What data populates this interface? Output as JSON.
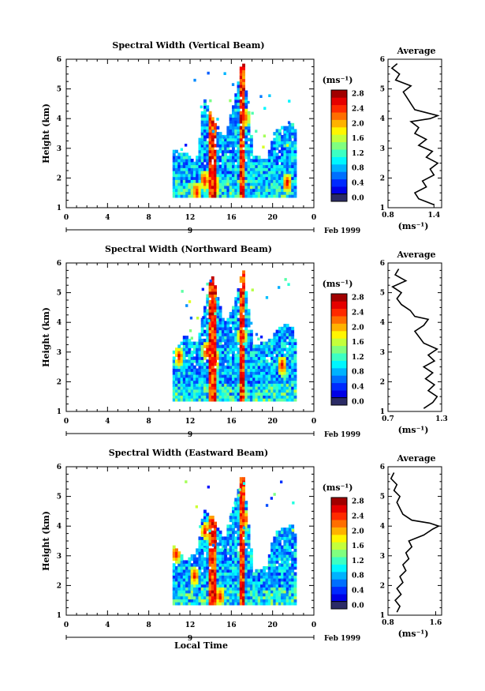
{
  "footer": {
    "xlabel": "Local Time"
  },
  "chart_data": [
    {
      "type": "heatmap",
      "title": "Spectral Width (Vertical Beam)",
      "ylabel": "Height (km)",
      "x_ticks": [
        "0",
        "4",
        "8",
        "12",
        "16",
        "20",
        "0"
      ],
      "y_ticks": [
        "1",
        "2",
        "3",
        "4",
        "5",
        "6"
      ],
      "xlim": [
        0,
        24
      ],
      "ylim": [
        1,
        6
      ],
      "day_label": "9",
      "date_label": "Feb 1999",
      "colorbar": {
        "unit": "(ms⁻¹)",
        "labels": [
          "0.0",
          "0.4",
          "0.8",
          "1.2",
          "1.6",
          "2.0",
          "2.4",
          "2.8"
        ],
        "range": [
          0,
          3.0
        ]
      },
      "extent": [
        [
          10.3,
          1.35,
          2.9
        ],
        [
          11.4,
          1.35,
          2.8
        ],
        [
          12.5,
          1.35,
          2.5
        ],
        [
          13.2,
          1.35,
          4.7
        ],
        [
          14.0,
          1.35,
          4.0
        ],
        [
          15.2,
          1.35,
          3.3
        ],
        [
          16.2,
          1.35,
          4.6
        ],
        [
          17.0,
          1.35,
          6.0
        ],
        [
          18.0,
          1.35,
          2.7
        ],
        [
          19.3,
          1.35,
          2.6
        ],
        [
          20.0,
          1.35,
          3.5
        ],
        [
          21.0,
          1.35,
          3.7
        ],
        [
          21.8,
          1.35,
          3.8
        ],
        [
          22.0,
          1.35,
          3.6
        ]
      ],
      "hot": [
        [
          12.5,
          1.5
        ],
        [
          13.3,
          1.9
        ],
        [
          14.3,
          1.7
        ],
        [
          17.1,
          4.0
        ],
        [
          21.3,
          1.8
        ]
      ],
      "average": {
        "title": "Average",
        "xlabel": "(ms⁻¹)",
        "x_ticks": [
          "0.8",
          "1.4"
        ],
        "xlim": [
          0.8,
          1.5
        ],
        "profile": [
          [
            1.1,
            1.4
          ],
          [
            1.3,
            1.2
          ],
          [
            1.5,
            1.15
          ],
          [
            1.7,
            1.3
          ],
          [
            1.9,
            1.25
          ],
          [
            2.1,
            1.4
          ],
          [
            2.3,
            1.35
          ],
          [
            2.5,
            1.45
          ],
          [
            2.7,
            1.3
          ],
          [
            2.9,
            1.38
          ],
          [
            3.1,
            1.2
          ],
          [
            3.3,
            1.3
          ],
          [
            3.5,
            1.15
          ],
          [
            3.7,
            1.2
          ],
          [
            3.9,
            1.1
          ],
          [
            4.0,
            1.35
          ],
          [
            4.1,
            1.45
          ],
          [
            4.2,
            1.3
          ],
          [
            4.3,
            1.15
          ],
          [
            4.5,
            1.1
          ],
          [
            4.7,
            1.05
          ],
          [
            4.9,
            1.0
          ],
          [
            5.1,
            1.1
          ],
          [
            5.3,
            0.9
          ],
          [
            5.5,
            0.95
          ],
          [
            5.7,
            0.85
          ],
          [
            5.85,
            0.92
          ]
        ]
      }
    },
    {
      "type": "heatmap",
      "title": "Spectral Width (Northward Beam)",
      "ylabel": "Height (km)",
      "x_ticks": [
        "0",
        "4",
        "8",
        "12",
        "16",
        "20",
        "0"
      ],
      "y_ticks": [
        "1",
        "2",
        "3",
        "4",
        "5",
        "6"
      ],
      "xlim": [
        0,
        24
      ],
      "ylim": [
        1,
        6
      ],
      "day_label": "9",
      "date_label": "Feb 1999",
      "colorbar": {
        "unit": "(ms⁻¹)",
        "labels": [
          "0.0",
          "0.4",
          "0.8",
          "1.2",
          "1.6",
          "2.0",
          "2.4",
          "2.8"
        ],
        "range": [
          0,
          3.0
        ]
      },
      "extent": [
        [
          10.3,
          1.35,
          3.0
        ],
        [
          11.4,
          1.35,
          3.5
        ],
        [
          12.5,
          1.35,
          3.2
        ],
        [
          13.2,
          1.35,
          4.3
        ],
        [
          14.0,
          1.35,
          5.6
        ],
        [
          15.2,
          1.35,
          3.9
        ],
        [
          16.2,
          1.35,
          4.6
        ],
        [
          17.0,
          1.35,
          5.8
        ],
        [
          18.0,
          1.35,
          3.2
        ],
        [
          19.3,
          1.35,
          3.3
        ],
        [
          20.0,
          1.35,
          3.6
        ],
        [
          21.0,
          1.35,
          3.9
        ],
        [
          21.8,
          1.35,
          3.8
        ],
        [
          22.0,
          1.35,
          3.4
        ]
      ],
      "hot": [
        [
          10.8,
          2.8
        ],
        [
          13.5,
          3.0
        ],
        [
          14.3,
          2.7
        ],
        [
          16.9,
          3.5
        ],
        [
          20.8,
          2.5
        ]
      ],
      "average": {
        "title": "Average",
        "xlabel": "(ms⁻¹)",
        "x_ticks": [
          "0.7",
          "1.3"
        ],
        "xlim": [
          0.7,
          1.3
        ],
        "profile": [
          [
            1.1,
            1.1
          ],
          [
            1.3,
            1.2
          ],
          [
            1.5,
            1.25
          ],
          [
            1.7,
            1.15
          ],
          [
            1.9,
            1.22
          ],
          [
            2.1,
            1.12
          ],
          [
            2.3,
            1.2
          ],
          [
            2.5,
            1.1
          ],
          [
            2.7,
            1.22
          ],
          [
            2.9,
            1.15
          ],
          [
            3.1,
            1.25
          ],
          [
            3.3,
            1.1
          ],
          [
            3.5,
            1.05
          ],
          [
            3.7,
            1.0
          ],
          [
            3.9,
            1.1
          ],
          [
            4.1,
            1.15
          ],
          [
            4.2,
            1.0
          ],
          [
            4.4,
            0.95
          ],
          [
            4.6,
            0.85
          ],
          [
            4.8,
            0.8
          ],
          [
            5.0,
            0.85
          ],
          [
            5.2,
            0.75
          ],
          [
            5.4,
            0.9
          ],
          [
            5.6,
            0.78
          ],
          [
            5.8,
            0.82
          ]
        ]
      }
    },
    {
      "type": "heatmap",
      "title": "Spectral Width (Eastward Beam)",
      "ylabel": "Height (km)",
      "x_ticks": [
        "0",
        "4",
        "8",
        "12",
        "16",
        "20",
        "0"
      ],
      "y_ticks": [
        "1",
        "2",
        "3",
        "4",
        "5",
        "6"
      ],
      "xlim": [
        0,
        24
      ],
      "ylim": [
        1,
        6
      ],
      "day_label": "9",
      "date_label": "Feb 1999",
      "colorbar": {
        "unit": "(ms⁻¹)",
        "labels": [
          "0.0",
          "0.4",
          "0.8",
          "1.2",
          "1.6",
          "2.0",
          "2.4",
          "2.8"
        ],
        "range": [
          0,
          3.0
        ]
      },
      "extent": [
        [
          10.3,
          1.35,
          3.3
        ],
        [
          11.4,
          1.35,
          2.8
        ],
        [
          12.5,
          1.35,
          3.1
        ],
        [
          13.2,
          1.35,
          4.5
        ],
        [
          14.0,
          1.35,
          4.3
        ],
        [
          15.2,
          1.35,
          3.5
        ],
        [
          16.2,
          1.35,
          4.8
        ],
        [
          17.0,
          1.35,
          5.8
        ],
        [
          18.0,
          1.35,
          2.5
        ],
        [
          19.3,
          1.35,
          2.6
        ],
        [
          20.0,
          1.35,
          3.7
        ],
        [
          21.0,
          1.35,
          3.9
        ],
        [
          21.8,
          1.35,
          4.0
        ],
        [
          22.0,
          1.35,
          3.7
        ]
      ],
      "hot": [
        [
          10.5,
          3.0
        ],
        [
          12.3,
          2.3
        ],
        [
          13.4,
          3.8
        ],
        [
          14.8,
          1.6
        ],
        [
          17.1,
          4.2
        ]
      ],
      "average": {
        "title": "Average",
        "xlabel": "(ms⁻¹)",
        "x_ticks": [
          "0.8",
          "1.6"
        ],
        "xlim": [
          0.8,
          1.7
        ],
        "profile": [
          [
            1.1,
            0.95
          ],
          [
            1.3,
            1.0
          ],
          [
            1.5,
            0.92
          ],
          [
            1.7,
            1.02
          ],
          [
            1.9,
            0.95
          ],
          [
            2.1,
            1.05
          ],
          [
            2.3,
            1.0
          ],
          [
            2.5,
            1.1
          ],
          [
            2.7,
            1.05
          ],
          [
            2.9,
            1.15
          ],
          [
            3.1,
            1.1
          ],
          [
            3.3,
            1.2
          ],
          [
            3.5,
            1.15
          ],
          [
            3.7,
            1.4
          ],
          [
            3.9,
            1.55
          ],
          [
            4.0,
            1.65
          ],
          [
            4.1,
            1.5
          ],
          [
            4.2,
            1.2
          ],
          [
            4.4,
            1.05
          ],
          [
            4.6,
            1.0
          ],
          [
            4.8,
            0.95
          ],
          [
            5.0,
            1.0
          ],
          [
            5.2,
            0.9
          ],
          [
            5.4,
            0.95
          ],
          [
            5.6,
            0.85
          ],
          [
            5.8,
            0.9
          ]
        ]
      }
    }
  ]
}
